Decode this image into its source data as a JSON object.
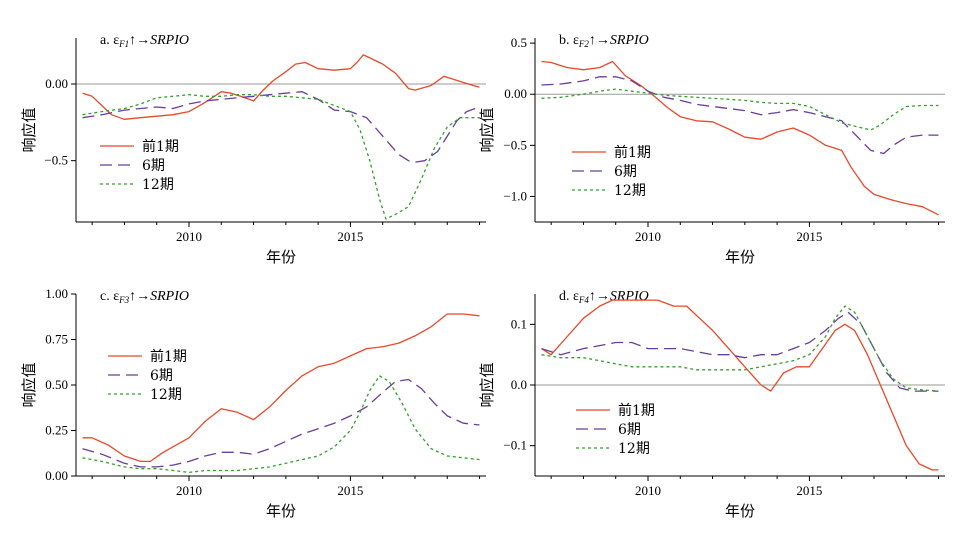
{
  "colors": {
    "s1": "#e8492a",
    "s2": "#6a3d9a",
    "s3": "#33a02c",
    "zero": "#9a9a9a"
  },
  "chart_data": [
    {
      "type": "line",
      "title": {
        "prefix": "a. ε",
        "sub": "F1",
        "suffix": "↑→",
        "target": "SRPIO"
      },
      "xlabel": "年份",
      "ylabel": "响应值",
      "xlim": [
        2006.5,
        2019.2
      ],
      "ylim": [
        -0.9,
        0.3
      ],
      "xticks": [
        2010,
        2015
      ],
      "yticks": [
        {
          "v": 0.0,
          "label": "0.00"
        },
        {
          "v": -0.5,
          "label": "−0.5"
        }
      ],
      "series": [
        {
          "name": "前1期",
          "color": "s1",
          "dash": "solid",
          "x": [
            2006.7,
            2007.0,
            2007.3,
            2007.6,
            2008.0,
            2008.5,
            2009.0,
            2009.5,
            2010.0,
            2010.5,
            2011.0,
            2011.3,
            2011.6,
            2012.0,
            2012.3,
            2012.6,
            2013.0,
            2013.3,
            2013.6,
            2014.0,
            2014.5,
            2015.0,
            2015.2,
            2015.4,
            2015.6,
            2016.0,
            2016.4,
            2016.8,
            2017.0,
            2017.5,
            2017.9,
            2018.2,
            2018.5,
            2018.8,
            2019.0
          ],
          "y": [
            -0.06,
            -0.08,
            -0.14,
            -0.2,
            -0.23,
            -0.22,
            -0.21,
            -0.2,
            -0.18,
            -0.12,
            -0.05,
            -0.06,
            -0.08,
            -0.11,
            -0.04,
            0.02,
            0.08,
            0.13,
            0.14,
            0.1,
            0.09,
            0.1,
            0.14,
            0.19,
            0.17,
            0.13,
            0.07,
            -0.03,
            -0.04,
            -0.01,
            0.05,
            0.03,
            0.01,
            -0.01,
            -0.02
          ]
        },
        {
          "name": "6期",
          "color": "s2",
          "dash": "12,6",
          "x": [
            2006.7,
            2007.3,
            2008.0,
            2008.5,
            2009.0,
            2009.5,
            2010.0,
            2010.5,
            2011.0,
            2011.5,
            2012.0,
            2012.5,
            2013.0,
            2013.5,
            2014.0,
            2014.5,
            2015.0,
            2015.5,
            2016.0,
            2016.5,
            2016.8,
            2017.0,
            2017.3,
            2017.7,
            2018.0,
            2018.3,
            2018.6,
            2019.0
          ],
          "y": [
            -0.22,
            -0.2,
            -0.17,
            -0.16,
            -0.15,
            -0.16,
            -0.13,
            -0.11,
            -0.1,
            -0.09,
            -0.08,
            -0.07,
            -0.06,
            -0.05,
            -0.1,
            -0.17,
            -0.18,
            -0.22,
            -0.34,
            -0.46,
            -0.5,
            -0.51,
            -0.5,
            -0.44,
            -0.34,
            -0.24,
            -0.18,
            -0.15
          ]
        },
        {
          "name": "12期",
          "color": "s3",
          "dash": "3,3",
          "x": [
            2006.7,
            2007.3,
            2008.0,
            2008.5,
            2009.0,
            2009.5,
            2010.0,
            2010.5,
            2011.0,
            2011.5,
            2012.0,
            2012.5,
            2013.0,
            2013.5,
            2014.0,
            2014.5,
            2015.0,
            2015.3,
            2015.6,
            2015.9,
            2016.1,
            2016.4,
            2016.8,
            2017.2,
            2017.6,
            2018.0,
            2018.4,
            2018.8,
            2019.0
          ],
          "y": [
            -0.2,
            -0.18,
            -0.16,
            -0.13,
            -0.09,
            -0.08,
            -0.07,
            -0.08,
            -0.08,
            -0.07,
            -0.07,
            -0.08,
            -0.08,
            -0.09,
            -0.1,
            -0.14,
            -0.18,
            -0.3,
            -0.5,
            -0.75,
            -0.88,
            -0.85,
            -0.8,
            -0.62,
            -0.42,
            -0.28,
            -0.22,
            -0.22,
            -0.22
          ]
        }
      ]
    },
    {
      "type": "line",
      "title": {
        "prefix": "b. ε",
        "sub": "F2",
        "suffix": "↑→",
        "target": "SRPIO"
      },
      "xlabel": "年份",
      "ylabel": "响应值",
      "xlim": [
        2006.5,
        2019.2
      ],
      "ylim": [
        -1.25,
        0.55
      ],
      "xticks": [
        2010,
        2015
      ],
      "yticks": [
        {
          "v": 0.5,
          "label": "0.5"
        },
        {
          "v": 0.0,
          "label": "0.00"
        },
        {
          "v": -0.5,
          "label": "−0.5"
        },
        {
          "v": -1.0,
          "label": "−1.0"
        }
      ],
      "series": [
        {
          "name": "前1期",
          "color": "s1",
          "dash": "solid",
          "x": [
            2006.7,
            2007.0,
            2007.5,
            2008.0,
            2008.5,
            2008.9,
            2009.3,
            2009.8,
            2010.2,
            2010.6,
            2011.0,
            2011.5,
            2012.0,
            2012.5,
            2013.0,
            2013.5,
            2014.0,
            2014.5,
            2015.0,
            2015.5,
            2016.0,
            2016.3,
            2016.7,
            2017.0,
            2017.5,
            2018.0,
            2018.5,
            2019.0
          ],
          "y": [
            0.32,
            0.31,
            0.26,
            0.24,
            0.26,
            0.32,
            0.18,
            0.08,
            -0.02,
            -0.13,
            -0.22,
            -0.26,
            -0.27,
            -0.34,
            -0.42,
            -0.44,
            -0.37,
            -0.33,
            -0.4,
            -0.5,
            -0.55,
            -0.72,
            -0.9,
            -0.98,
            -1.03,
            -1.07,
            -1.1,
            -1.18
          ]
        },
        {
          "name": "6期",
          "color": "s2",
          "dash": "12,6",
          "x": [
            2006.7,
            2007.3,
            2008.0,
            2008.5,
            2009.0,
            2009.5,
            2010.0,
            2010.5,
            2011.0,
            2011.5,
            2012.0,
            2012.5,
            2013.0,
            2013.5,
            2014.0,
            2014.5,
            2015.0,
            2015.5,
            2016.0,
            2016.5,
            2016.9,
            2017.3,
            2017.6,
            2018.0,
            2018.5,
            2019.0
          ],
          "y": [
            0.09,
            0.1,
            0.13,
            0.17,
            0.17,
            0.13,
            0.03,
            -0.03,
            -0.06,
            -0.1,
            -0.12,
            -0.14,
            -0.16,
            -0.2,
            -0.18,
            -0.15,
            -0.18,
            -0.22,
            -0.26,
            -0.42,
            -0.55,
            -0.58,
            -0.5,
            -0.42,
            -0.4,
            -0.4
          ]
        },
        {
          "name": "12期",
          "color": "s3",
          "dash": "3,3",
          "x": [
            2006.7,
            2007.3,
            2008.0,
            2008.5,
            2009.0,
            2009.5,
            2010.0,
            2010.5,
            2011.0,
            2011.5,
            2012.0,
            2012.5,
            2013.0,
            2013.5,
            2014.0,
            2014.5,
            2015.0,
            2015.5,
            2016.0,
            2016.5,
            2016.9,
            2017.2,
            2017.6,
            2018.0,
            2018.5,
            2019.0
          ],
          "y": [
            -0.04,
            -0.03,
            0.0,
            0.03,
            0.05,
            0.03,
            0.01,
            -0.01,
            -0.02,
            -0.03,
            -0.04,
            -0.05,
            -0.06,
            -0.08,
            -0.09,
            -0.09,
            -0.12,
            -0.2,
            -0.28,
            -0.32,
            -0.35,
            -0.3,
            -0.2,
            -0.12,
            -0.11,
            -0.11
          ]
        }
      ]
    },
    {
      "type": "line",
      "title": {
        "prefix": "c. ε",
        "sub": "F3",
        "suffix": "↑→",
        "target": "SRPIO"
      },
      "xlabel": "年份",
      "ylabel": "响应值",
      "xlim": [
        2006.5,
        2019.2
      ],
      "ylim": [
        0.0,
        1.0
      ],
      "xticks": [
        2010,
        2015
      ],
      "yticks": [
        {
          "v": 1.0,
          "label": "1.00"
        },
        {
          "v": 0.75,
          "label": "0.75"
        },
        {
          "v": 0.5,
          "label": "0.50"
        },
        {
          "v": 0.25,
          "label": "0.25"
        },
        {
          "v": 0.0,
          "label": "0.00"
        }
      ],
      "series": [
        {
          "name": "前1期",
          "color": "s1",
          "dash": "solid",
          "x": [
            2006.7,
            2007.0,
            2007.5,
            2008.0,
            2008.5,
            2008.8,
            2009.2,
            2009.6,
            2010.0,
            2010.5,
            2011.0,
            2011.5,
            2012.0,
            2012.5,
            2013.0,
            2013.5,
            2014.0,
            2014.5,
            2015.0,
            2015.5,
            2016.0,
            2016.5,
            2017.0,
            2017.5,
            2018.0,
            2018.5,
            2019.0
          ],
          "y": [
            0.21,
            0.21,
            0.17,
            0.11,
            0.08,
            0.08,
            0.13,
            0.17,
            0.21,
            0.3,
            0.37,
            0.35,
            0.31,
            0.38,
            0.47,
            0.55,
            0.6,
            0.62,
            0.66,
            0.7,
            0.71,
            0.73,
            0.77,
            0.82,
            0.89,
            0.89,
            0.88
          ]
        },
        {
          "name": "6期",
          "color": "s2",
          "dash": "12,6",
          "x": [
            2006.7,
            2007.3,
            2008.0,
            2008.5,
            2009.0,
            2009.5,
            2010.0,
            2010.5,
            2011.0,
            2011.5,
            2012.0,
            2012.5,
            2013.0,
            2013.5,
            2014.0,
            2014.5,
            2015.0,
            2015.5,
            2016.0,
            2016.4,
            2016.8,
            2017.2,
            2017.6,
            2018.0,
            2018.5,
            2019.0
          ],
          "y": [
            0.15,
            0.12,
            0.07,
            0.05,
            0.05,
            0.06,
            0.08,
            0.11,
            0.13,
            0.13,
            0.12,
            0.15,
            0.19,
            0.23,
            0.26,
            0.29,
            0.33,
            0.38,
            0.46,
            0.52,
            0.53,
            0.48,
            0.4,
            0.33,
            0.29,
            0.28
          ]
        },
        {
          "name": "12期",
          "color": "s3",
          "dash": "3,3",
          "x": [
            2006.7,
            2007.3,
            2008.0,
            2008.5,
            2009.0,
            2009.5,
            2010.0,
            2010.5,
            2011.0,
            2011.5,
            2012.0,
            2012.5,
            2013.0,
            2013.5,
            2014.0,
            2014.5,
            2015.0,
            2015.3,
            2015.6,
            2015.9,
            2016.2,
            2016.6,
            2017.0,
            2017.5,
            2018.0,
            2018.5,
            2019.0
          ],
          "y": [
            0.1,
            0.08,
            0.05,
            0.04,
            0.04,
            0.03,
            0.02,
            0.03,
            0.03,
            0.03,
            0.04,
            0.05,
            0.07,
            0.09,
            0.11,
            0.16,
            0.25,
            0.35,
            0.47,
            0.55,
            0.52,
            0.4,
            0.26,
            0.15,
            0.11,
            0.1,
            0.09
          ]
        }
      ]
    },
    {
      "type": "line",
      "title": {
        "prefix": "d. ε",
        "sub": "F4",
        "suffix": "↑→",
        "target": "SRPIO"
      },
      "xlabel": "年份",
      "ylabel": "响应值",
      "xlim": [
        2006.5,
        2019.2
      ],
      "ylim": [
        -0.15,
        0.15
      ],
      "xticks": [
        2010,
        2015
      ],
      "yticks": [
        {
          "v": 0.1,
          "label": "0.1"
        },
        {
          "v": 0.0,
          "label": "0.0"
        },
        {
          "v": -0.1,
          "label": "−0.1"
        }
      ],
      "series": [
        {
          "name": "前1期",
          "color": "s1",
          "dash": "solid",
          "x": [
            2006.7,
            2007.0,
            2007.5,
            2008.0,
            2008.5,
            2008.9,
            2009.3,
            2009.8,
            2010.3,
            2010.8,
            2011.2,
            2011.6,
            2012.0,
            2012.5,
            2013.0,
            2013.5,
            2013.8,
            2014.2,
            2014.6,
            2015.0,
            2015.4,
            2015.8,
            2016.1,
            2016.4,
            2016.8,
            2017.2,
            2017.6,
            2018.0,
            2018.4,
            2018.8,
            2019.0
          ],
          "y": [
            0.06,
            0.05,
            0.08,
            0.11,
            0.13,
            0.14,
            0.14,
            0.14,
            0.14,
            0.13,
            0.13,
            0.11,
            0.09,
            0.06,
            0.03,
            0.0,
            -0.01,
            0.02,
            0.03,
            0.03,
            0.06,
            0.09,
            0.1,
            0.09,
            0.05,
            0.0,
            -0.05,
            -0.1,
            -0.13,
            -0.14,
            -0.14
          ]
        },
        {
          "name": "6期",
          "color": "s2",
          "dash": "12,6",
          "x": [
            2006.7,
            2007.3,
            2008.0,
            2008.5,
            2009.0,
            2009.5,
            2010.0,
            2010.5,
            2011.0,
            2011.5,
            2012.0,
            2012.5,
            2013.0,
            2013.5,
            2014.0,
            2014.5,
            2015.0,
            2015.5,
            2015.9,
            2016.2,
            2016.6,
            2017.0,
            2017.4,
            2017.8,
            2018.2,
            2018.6,
            2019.0
          ],
          "y": [
            0.06,
            0.05,
            0.06,
            0.065,
            0.07,
            0.07,
            0.06,
            0.06,
            0.06,
            0.055,
            0.05,
            0.05,
            0.045,
            0.05,
            0.05,
            0.06,
            0.07,
            0.09,
            0.11,
            0.12,
            0.1,
            0.06,
            0.02,
            -0.005,
            -0.01,
            -0.01,
            -0.01
          ]
        },
        {
          "name": "12期",
          "color": "s3",
          "dash": "3,3",
          "x": [
            2006.7,
            2007.3,
            2008.0,
            2008.5,
            2009.0,
            2009.5,
            2010.0,
            2010.5,
            2011.0,
            2011.5,
            2012.0,
            2012.5,
            2013.0,
            2013.5,
            2014.0,
            2014.5,
            2015.0,
            2015.5,
            2015.8,
            2016.1,
            2016.4,
            2016.8,
            2017.2,
            2017.6,
            2018.0,
            2018.5,
            2019.0
          ],
          "y": [
            0.05,
            0.045,
            0.045,
            0.04,
            0.035,
            0.03,
            0.03,
            0.03,
            0.03,
            0.025,
            0.025,
            0.025,
            0.025,
            0.03,
            0.035,
            0.04,
            0.05,
            0.08,
            0.11,
            0.13,
            0.12,
            0.08,
            0.04,
            0.01,
            -0.005,
            -0.008,
            -0.01
          ]
        }
      ]
    }
  ]
}
